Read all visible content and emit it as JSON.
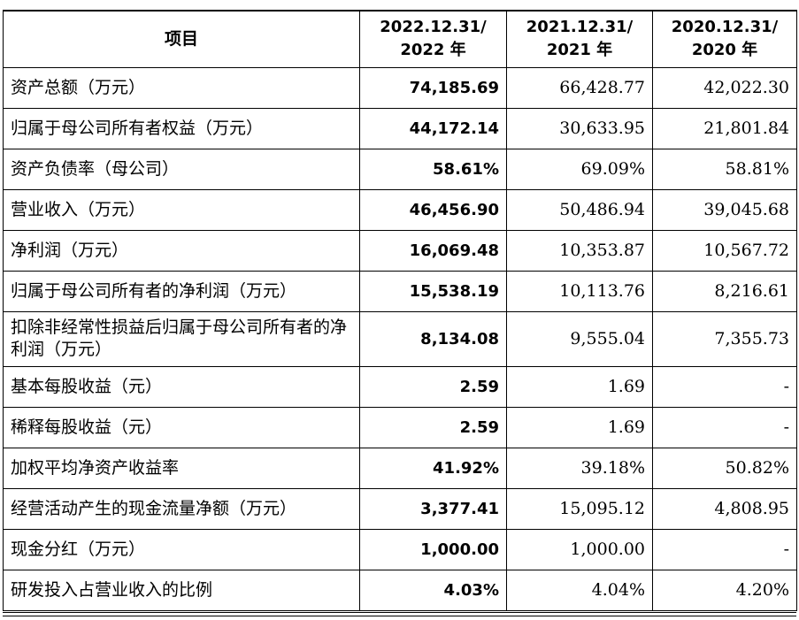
{
  "table": {
    "headers": {
      "item": "项目",
      "y2022_line1": "2022.12.31/",
      "y2022_line2": "2022 年",
      "y2021_line1": "2021.12.31/",
      "y2021_line2": "2021 年",
      "y2020_line1": "2020.12.31/",
      "y2020_line2": "2020 年"
    },
    "rows": [
      {
        "label": "资产总额（万元）",
        "v2022": "74,185.69",
        "v2021": "66,428.77",
        "v2020": "42,022.30"
      },
      {
        "label": "归属于母公司所有者权益（万元）",
        "v2022": "44,172.14",
        "v2021": "30,633.95",
        "v2020": "21,801.84"
      },
      {
        "label": "资产负债率（母公司）",
        "v2022": "58.61%",
        "v2021": "69.09%",
        "v2020": "58.81%"
      },
      {
        "label": "营业收入（万元）",
        "v2022": "46,456.90",
        "v2021": "50,486.94",
        "v2020": "39,045.68"
      },
      {
        "label": "净利润（万元）",
        "v2022": "16,069.48",
        "v2021": "10,353.87",
        "v2020": "10,567.72"
      },
      {
        "label": "归属于母公司所有者的净利润（万元）",
        "v2022": "15,538.19",
        "v2021": "10,113.76",
        "v2020": "8,216.61"
      },
      {
        "label": "扣除非经常性损益后归属于母公司所有者的净利润（万元）",
        "v2022": "8,134.08",
        "v2021": "9,555.04",
        "v2020": "7,355.73"
      },
      {
        "label": "基本每股收益（元）",
        "v2022": "2.59",
        "v2021": "1.69",
        "v2020": "-"
      },
      {
        "label": "稀释每股收益（元）",
        "v2022": "2.59",
        "v2021": "1.69",
        "v2020": "-"
      },
      {
        "label": "加权平均净资产收益率",
        "v2022": "41.92%",
        "v2021": "39.18%",
        "v2020": "50.82%"
      },
      {
        "label": "经营活动产生的现金流量净额（万元）",
        "v2022": "3,377.41",
        "v2021": "15,095.12",
        "v2020": "4,808.95"
      },
      {
        "label": "现金分红（万元）",
        "v2022": "1,000.00",
        "v2021": "1,000.00",
        "v2020": "-"
      },
      {
        "label": "研发投入占营业收入的比例",
        "v2022": "4.03%",
        "v2021": "4.04%",
        "v2020": "4.20%"
      }
    ]
  }
}
